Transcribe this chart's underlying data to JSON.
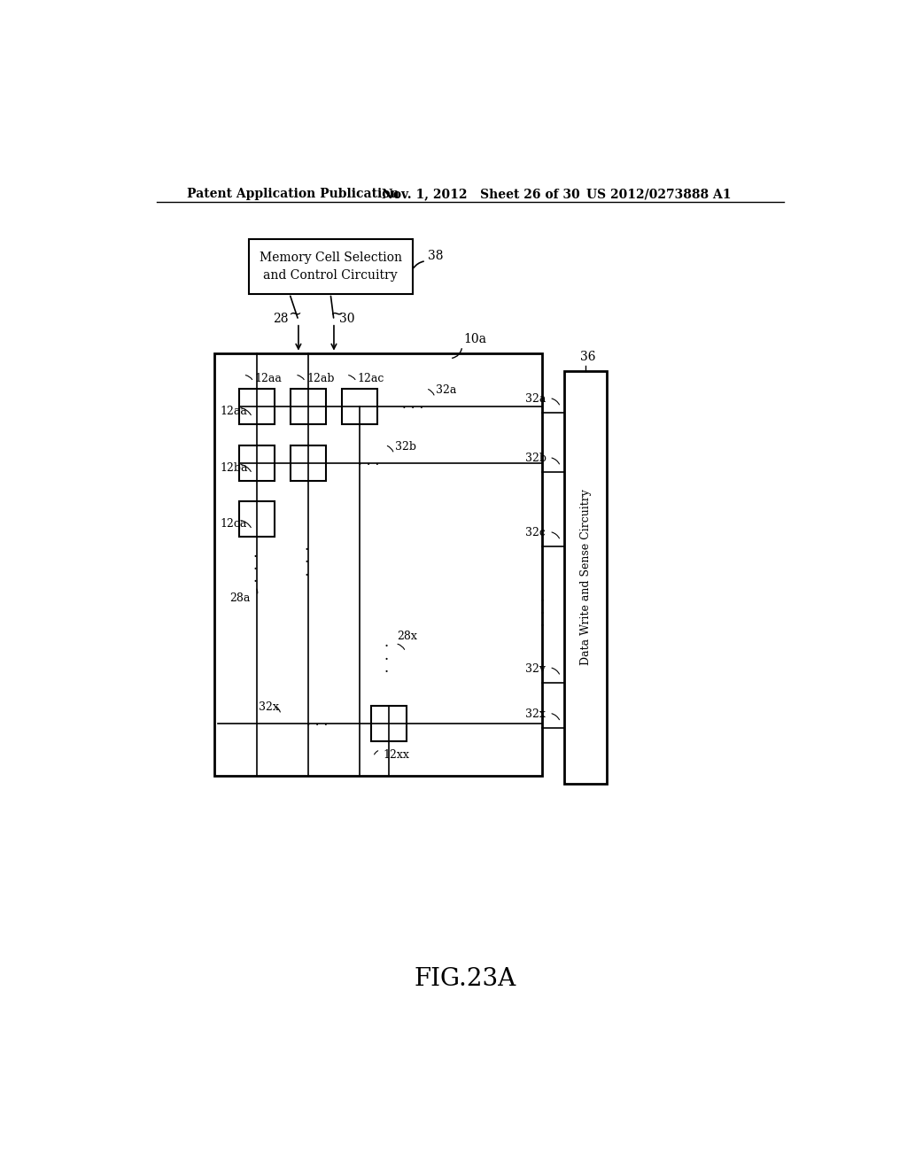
{
  "bg_color": "#ffffff",
  "header_left": "Patent Application Publication",
  "header_mid": "Nov. 1, 2012   Sheet 26 of 30",
  "header_right": "US 2012/0273888 A1",
  "fig_label": "FIG.23A",
  "memory_box_text": "Memory Cell Selection\nand Control Circuitry",
  "memory_box_label": "38",
  "label_28": "28",
  "label_30": "30",
  "label_10a": "10a",
  "label_36": "36",
  "label_12aa_col": "12aa",
  "label_12ab_col": "12ab",
  "label_12ac_col": "12ac",
  "label_32a_top": "32a",
  "label_32b_top": "32b",
  "label_12aa_row": "12aa",
  "label_12ba": "12ba",
  "label_12ca": "12ca",
  "label_28a": "28a",
  "label_28x": "28x",
  "label_32x_inner": "32x",
  "label_12xx": "12xx",
  "label_32a_right": "32a",
  "label_32b_right": "32b",
  "label_32c_right": "32c",
  "label_32v_right": "32v",
  "label_32x_right": "32x",
  "data_write_text": "Data Write and Sense Circuitry"
}
